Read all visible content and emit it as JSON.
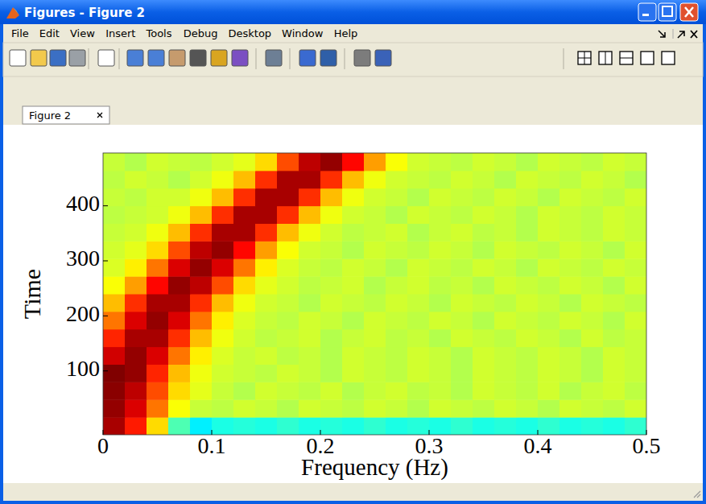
{
  "window": {
    "title": "Figures - Figure 2",
    "menus": [
      "File",
      "Edit",
      "View",
      "Insert",
      "Tools",
      "Debug",
      "Desktop",
      "Window",
      "Help"
    ],
    "tab": "Figure 2"
  },
  "chart_data": {
    "type": "heatmap",
    "x_label": "Frequency (Hz)",
    "y_label": "Time",
    "xlim": [
      0,
      0.5
    ],
    "ylim": [
      -16,
      496
    ],
    "xticks": [
      0,
      0.1,
      0.2,
      0.3,
      0.4,
      0.5
    ],
    "yticks": [
      100,
      200,
      300,
      400
    ],
    "zlim": [
      0,
      1
    ],
    "x": [
      0.01,
      0.03,
      0.05,
      0.07,
      0.09,
      0.11,
      0.13,
      0.15,
      0.17,
      0.19,
      0.21,
      0.23,
      0.25,
      0.27,
      0.29,
      0.31,
      0.33,
      0.35,
      0.37,
      0.39,
      0.41,
      0.43,
      0.45,
      0.47,
      0.49
    ],
    "y": [
      0,
      32,
      64,
      96,
      128,
      160,
      192,
      224,
      256,
      288,
      320,
      352,
      384,
      416,
      448,
      480
    ],
    "z": [
      [
        0.96,
        0.85,
        0.66,
        0.45,
        0.36,
        0.4,
        0.41,
        0.4,
        0.42,
        0.4,
        0.41,
        0.4,
        0.42,
        0.4,
        0.41,
        0.4,
        0.42,
        0.4,
        0.41,
        0.4,
        0.42,
        0.4,
        0.41,
        0.4,
        0.42
      ],
      [
        0.98,
        0.91,
        0.76,
        0.62,
        0.57,
        0.56,
        0.58,
        0.57,
        0.55,
        0.58,
        0.57,
        0.56,
        0.58,
        0.57,
        0.55,
        0.58,
        0.57,
        0.56,
        0.58,
        0.57,
        0.55,
        0.58,
        0.57,
        0.56,
        0.58
      ],
      [
        0.99,
        0.94,
        0.8,
        0.66,
        0.6,
        0.57,
        0.55,
        0.58,
        0.57,
        0.56,
        0.58,
        0.55,
        0.57,
        0.58,
        0.56,
        0.57,
        0.55,
        0.58,
        0.57,
        0.56,
        0.58,
        0.55,
        0.57,
        0.58,
        0.56
      ],
      [
        1.0,
        0.98,
        0.84,
        0.69,
        0.61,
        0.58,
        0.57,
        0.56,
        0.58,
        0.57,
        0.55,
        0.58,
        0.57,
        0.56,
        0.58,
        0.57,
        0.55,
        0.58,
        0.57,
        0.56,
        0.58,
        0.57,
        0.55,
        0.58,
        0.57
      ],
      [
        0.92,
        0.98,
        0.91,
        0.76,
        0.64,
        0.59,
        0.57,
        0.58,
        0.56,
        0.57,
        0.55,
        0.58,
        0.57,
        0.56,
        0.58,
        0.57,
        0.55,
        0.58,
        0.57,
        0.56,
        0.58,
        0.57,
        0.55,
        0.58,
        0.57
      ],
      [
        0.84,
        0.96,
        0.96,
        0.83,
        0.69,
        0.61,
        0.58,
        0.56,
        0.57,
        0.58,
        0.55,
        0.57,
        0.58,
        0.56,
        0.57,
        0.55,
        0.58,
        0.57,
        0.56,
        0.58,
        0.57,
        0.55,
        0.58,
        0.56,
        0.57
      ],
      [
        0.76,
        0.91,
        0.98,
        0.91,
        0.76,
        0.64,
        0.59,
        0.57,
        0.56,
        0.58,
        0.57,
        0.55,
        0.58,
        0.57,
        0.56,
        0.58,
        0.57,
        0.55,
        0.58,
        0.57,
        0.56,
        0.58,
        0.57,
        0.55,
        0.58
      ],
      [
        0.69,
        0.83,
        0.96,
        0.96,
        0.83,
        0.69,
        0.61,
        0.58,
        0.57,
        0.55,
        0.58,
        0.57,
        0.56,
        0.58,
        0.57,
        0.55,
        0.58,
        0.57,
        0.56,
        0.58,
        0.57,
        0.55,
        0.58,
        0.57,
        0.56
      ],
      [
        0.62,
        0.72,
        0.87,
        0.98,
        0.94,
        0.8,
        0.66,
        0.6,
        0.58,
        0.56,
        0.57,
        0.58,
        0.55,
        0.57,
        0.58,
        0.56,
        0.57,
        0.55,
        0.58,
        0.57,
        0.56,
        0.58,
        0.57,
        0.55,
        0.58
      ],
      [
        0.59,
        0.64,
        0.76,
        0.91,
        0.98,
        0.91,
        0.76,
        0.64,
        0.59,
        0.57,
        0.56,
        0.58,
        0.57,
        0.55,
        0.58,
        0.57,
        0.56,
        0.58,
        0.57,
        0.55,
        0.58,
        0.57,
        0.56,
        0.58,
        0.57
      ],
      [
        0.58,
        0.6,
        0.66,
        0.8,
        0.94,
        0.98,
        0.87,
        0.72,
        0.62,
        0.58,
        0.57,
        0.55,
        0.58,
        0.57,
        0.56,
        0.58,
        0.57,
        0.55,
        0.58,
        0.57,
        0.56,
        0.58,
        0.57,
        0.55,
        0.58
      ],
      [
        0.57,
        0.58,
        0.61,
        0.69,
        0.83,
        0.96,
        0.96,
        0.83,
        0.69,
        0.61,
        0.58,
        0.56,
        0.57,
        0.58,
        0.55,
        0.57,
        0.58,
        0.56,
        0.57,
        0.55,
        0.58,
        0.57,
        0.56,
        0.58,
        0.57
      ],
      [
        0.56,
        0.57,
        0.58,
        0.61,
        0.69,
        0.83,
        0.96,
        0.96,
        0.83,
        0.69,
        0.61,
        0.58,
        0.57,
        0.55,
        0.58,
        0.57,
        0.56,
        0.58,
        0.57,
        0.55,
        0.58,
        0.57,
        0.56,
        0.58,
        0.57
      ],
      [
        0.57,
        0.56,
        0.58,
        0.58,
        0.61,
        0.69,
        0.83,
        0.96,
        0.96,
        0.83,
        0.69,
        0.61,
        0.58,
        0.57,
        0.55,
        0.58,
        0.57,
        0.56,
        0.58,
        0.57,
        0.55,
        0.58,
        0.57,
        0.56,
        0.58
      ],
      [
        0.56,
        0.58,
        0.57,
        0.55,
        0.58,
        0.61,
        0.69,
        0.83,
        0.96,
        0.96,
        0.83,
        0.69,
        0.61,
        0.58,
        0.57,
        0.56,
        0.58,
        0.57,
        0.55,
        0.58,
        0.57,
        0.56,
        0.58,
        0.57,
        0.55
      ],
      [
        0.57,
        0.55,
        0.58,
        0.57,
        0.56,
        0.58,
        0.6,
        0.66,
        0.8,
        0.94,
        0.98,
        0.87,
        0.72,
        0.62,
        0.58,
        0.57,
        0.56,
        0.58,
        0.57,
        0.55,
        0.58,
        0.57,
        0.56,
        0.58,
        0.57
      ]
    ]
  }
}
